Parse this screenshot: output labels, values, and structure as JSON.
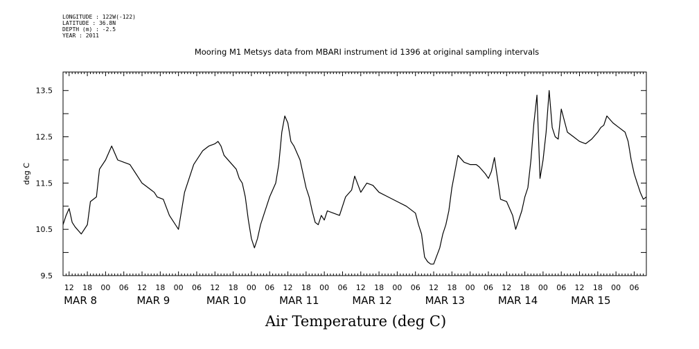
{
  "meta": {
    "longitude": "LONGITUDE : 122W(-122)",
    "latitude": "LATITUDE : 36.8N",
    "depth": "DEPTH (m) : -2.5",
    "year": "YEAR : 2011"
  },
  "chart_data": {
    "type": "line",
    "title": "Mooring M1 Metsys data from MBARI instrument id 1396 at original sampling intervals",
    "xlabel": "Air Temperature (deg C)",
    "ylabel": "deg C",
    "ylim": [
      9.5,
      13.9
    ],
    "yticks": [
      "9.5",
      "10.5",
      "11.5",
      "12.5",
      "13.5"
    ],
    "xlim": [
      "2011-03-07T10:00",
      "2011-03-15T10:00"
    ],
    "hour_ticks": [
      "12",
      "18",
      "00",
      "06",
      "12",
      "18",
      "00",
      "06",
      "12",
      "18",
      "00",
      "06",
      "12",
      "18",
      "00",
      "06",
      "12",
      "18",
      "00",
      "06",
      "12",
      "18",
      "00",
      "06",
      "12",
      "18",
      "00",
      "06",
      "12",
      "18",
      "00",
      "06"
    ],
    "date_labels": [
      "MAR  8",
      "MAR  9",
      "MAR 10",
      "MAR 11",
      "MAR 12",
      "MAR 13",
      "MAR 14",
      "MAR 15"
    ],
    "grid": false,
    "series": [
      {
        "color": "#000000",
        "x": [
          "2011-03-07T10:00",
          "2011-03-07T11:00",
          "2011-03-07T12:00",
          "2011-03-07T13:00",
          "2011-03-07T14:00",
          "2011-03-07T16:00",
          "2011-03-07T18:00",
          "2011-03-07T19:00",
          "2011-03-07T21:00",
          "2011-03-07T22:00",
          "2011-03-08T00:00",
          "2011-03-08T02:00",
          "2011-03-08T04:00",
          "2011-03-08T06:00",
          "2011-03-08T08:00",
          "2011-03-08T10:00",
          "2011-03-08T12:00",
          "2011-03-08T14:00",
          "2011-03-08T15:00",
          "2011-03-08T16:00",
          "2011-03-08T17:00",
          "2011-03-08T19:00",
          "2011-03-08T21:00",
          "2011-03-09T00:00",
          "2011-03-09T02:00",
          "2011-03-09T05:00",
          "2011-03-09T08:00",
          "2011-03-09T10:00",
          "2011-03-09T12:00",
          "2011-03-09T13:00",
          "2011-03-09T14:00",
          "2011-03-09T15:00",
          "2011-03-09T17:00",
          "2011-03-09T19:00",
          "2011-03-09T20:00",
          "2011-03-09T21:00",
          "2011-03-09T22:00",
          "2011-03-09T23:00",
          "2011-03-10T00:00",
          "2011-03-10T01:00",
          "2011-03-10T02:00",
          "2011-03-10T03:00",
          "2011-03-10T06:00",
          "2011-03-10T08:00",
          "2011-03-10T09:00",
          "2011-03-10T10:00",
          "2011-03-10T11:00",
          "2011-03-10T12:00",
          "2011-03-10T13:00",
          "2011-03-10T14:00",
          "2011-03-10T16:00",
          "2011-03-10T18:00",
          "2011-03-10T19:00",
          "2011-03-10T20:00",
          "2011-03-10T21:00",
          "2011-03-10T22:00",
          "2011-03-10T23:00",
          "2011-03-11T00:00",
          "2011-03-11T01:00",
          "2011-03-11T03:00",
          "2011-03-11T05:00",
          "2011-03-11T07:00",
          "2011-03-11T09:00",
          "2011-03-11T10:00",
          "2011-03-11T12:00",
          "2011-03-11T14:00",
          "2011-03-11T16:00",
          "2011-03-11T18:00",
          "2011-03-11T21:00",
          "2011-03-12T00:00",
          "2011-03-12T03:00",
          "2011-03-12T06:00",
          "2011-03-12T07:00",
          "2011-03-12T08:00",
          "2011-03-12T09:00",
          "2011-03-12T10:00",
          "2011-03-12T11:00",
          "2011-03-12T12:00",
          "2011-03-12T14:00",
          "2011-03-12T15:00",
          "2011-03-12T16:00",
          "2011-03-12T17:00",
          "2011-03-12T18:00",
          "2011-03-12T20:00",
          "2011-03-12T22:00",
          "2011-03-13T00:00",
          "2011-03-13T02:00",
          "2011-03-13T03:00",
          "2011-03-13T05:00",
          "2011-03-13T06:00",
          "2011-03-13T07:00",
          "2011-03-13T08:00",
          "2011-03-13T10:00",
          "2011-03-13T12:00",
          "2011-03-13T14:00",
          "2011-03-13T15:00",
          "2011-03-13T17:00",
          "2011-03-13T18:00",
          "2011-03-13T19:00",
          "2011-03-13T20:00",
          "2011-03-13T21:00",
          "2011-03-13T22:00",
          "2011-03-13T23:00",
          "2011-03-14T00:00",
          "2011-03-14T01:00",
          "2011-03-14T02:00",
          "2011-03-14T03:00",
          "2011-03-14T04:00",
          "2011-03-14T05:00",
          "2011-03-14T06:00",
          "2011-03-14T08:00",
          "2011-03-14T10:00",
          "2011-03-14T12:00",
          "2011-03-14T14:00",
          "2011-03-14T16:00",
          "2011-03-14T18:00",
          "2011-03-14T19:00",
          "2011-03-14T20:00",
          "2011-03-14T21:00",
          "2011-03-14T23:00",
          "2011-03-15T01:00",
          "2011-03-15T03:00",
          "2011-03-15T04:00",
          "2011-03-15T05:00",
          "2011-03-15T06:00",
          "2011-03-15T07:00",
          "2011-03-15T08:00",
          "2011-03-15T09:00",
          "2011-03-15T10:00"
        ],
        "y": [
          10.6,
          10.8,
          10.95,
          10.65,
          10.55,
          10.4,
          10.6,
          11.1,
          11.2,
          11.8,
          12.0,
          12.3,
          12.0,
          11.95,
          11.9,
          11.7,
          11.5,
          11.4,
          11.35,
          11.3,
          11.2,
          11.15,
          10.8,
          10.5,
          11.3,
          11.9,
          12.2,
          12.3,
          12.35,
          12.4,
          12.3,
          12.1,
          11.95,
          11.8,
          11.6,
          11.5,
          11.2,
          10.7,
          10.3,
          10.1,
          10.3,
          10.6,
          11.2,
          11.5,
          11.9,
          12.6,
          12.95,
          12.8,
          12.4,
          12.3,
          12.0,
          11.4,
          11.2,
          10.9,
          10.65,
          10.6,
          10.8,
          10.7,
          10.9,
          10.85,
          10.8,
          11.2,
          11.35,
          11.65,
          11.3,
          11.5,
          11.45,
          11.3,
          11.2,
          11.1,
          11.0,
          10.85,
          10.6,
          10.4,
          9.9,
          9.8,
          9.75,
          9.75,
          10.1,
          10.4,
          10.6,
          10.9,
          11.4,
          12.1,
          11.95,
          11.9,
          11.9,
          11.85,
          11.7,
          11.6,
          11.75,
          12.05,
          11.15,
          11.1,
          10.8,
          10.5,
          10.9,
          11.2,
          11.4,
          12.0,
          12.8,
          13.4,
          11.6,
          12.0,
          12.6,
          13.5,
          12.7,
          12.5,
          12.45,
          13.1,
          12.6,
          12.5,
          12.4,
          12.35,
          12.45,
          12.6,
          12.7,
          12.75,
          12.95,
          12.8,
          12.7,
          12.6,
          12.4,
          12.0,
          11.7,
          11.5,
          11.3,
          11.15,
          11.2
        ]
      }
    ]
  }
}
